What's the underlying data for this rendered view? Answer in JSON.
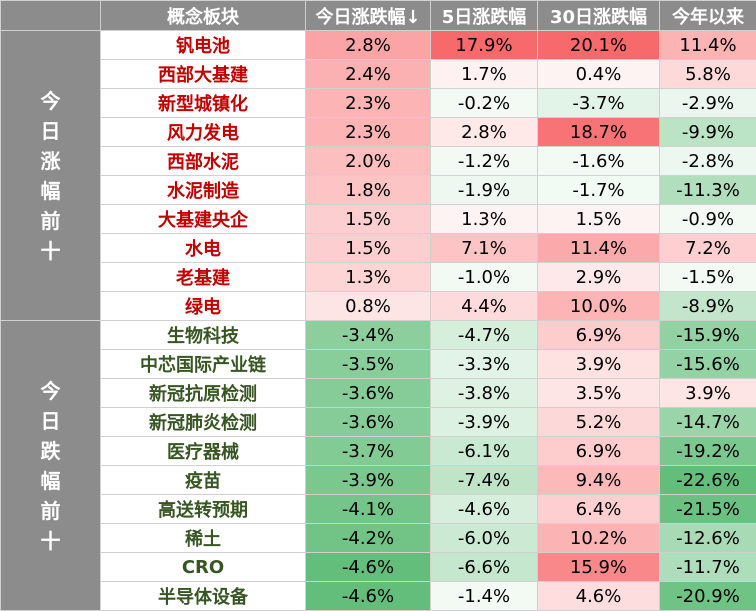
{
  "headers": [
    "",
    "概念板块",
    "今日涨跌幅↓",
    "5日涨跌幅",
    "30日涨跌幅",
    "今年以来"
  ],
  "groups": [
    {
      "label": "今日涨幅前十",
      "kind": "up"
    },
    {
      "label": "今日跌幅前十",
      "kind": "down"
    }
  ],
  "colors": {
    "header_bg": "#8c8c8c",
    "up_name": "#c00000",
    "down_name": "#375623",
    "max_positive": "#f8696b",
    "max_negative": "#63be7b"
  },
  "rows": [
    {
      "group": 0,
      "name": "钒电池",
      "values": [
        "2.8%",
        "17.9%",
        "20.1%",
        "11.4%"
      ],
      "nums": [
        2.8,
        17.9,
        20.1,
        11.4
      ]
    },
    {
      "group": 0,
      "name": "西部大基建",
      "values": [
        "2.4%",
        "1.7%",
        "0.4%",
        "5.8%"
      ],
      "nums": [
        2.4,
        1.7,
        0.4,
        5.8
      ]
    },
    {
      "group": 0,
      "name": "新型城镇化",
      "values": [
        "2.3%",
        "-0.2%",
        "-3.7%",
        "-2.9%"
      ],
      "nums": [
        2.3,
        -0.2,
        -3.7,
        -2.9
      ]
    },
    {
      "group": 0,
      "name": "风力发电",
      "values": [
        "2.3%",
        "2.8%",
        "18.7%",
        "-9.9%"
      ],
      "nums": [
        2.3,
        2.8,
        18.7,
        -9.9
      ]
    },
    {
      "group": 0,
      "name": "西部水泥",
      "values": [
        "2.0%",
        "-1.2%",
        "-1.6%",
        "-2.8%"
      ],
      "nums": [
        2.0,
        -1.2,
        -1.6,
        -2.8
      ]
    },
    {
      "group": 0,
      "name": "水泥制造",
      "values": [
        "1.8%",
        "-1.9%",
        "-1.7%",
        "-11.3%"
      ],
      "nums": [
        1.8,
        -1.9,
        -1.7,
        -11.3
      ]
    },
    {
      "group": 0,
      "name": "大基建央企",
      "values": [
        "1.5%",
        "1.3%",
        "1.5%",
        "-0.9%"
      ],
      "nums": [
        1.5,
        1.3,
        1.5,
        -0.9
      ]
    },
    {
      "group": 0,
      "name": "水电",
      "values": [
        "1.5%",
        "7.1%",
        "11.4%",
        "7.2%"
      ],
      "nums": [
        1.5,
        7.1,
        11.4,
        7.2
      ]
    },
    {
      "group": 0,
      "name": "老基建",
      "values": [
        "1.3%",
        "-1.0%",
        "2.9%",
        "-1.5%"
      ],
      "nums": [
        1.3,
        -1.0,
        2.9,
        -1.5
      ]
    },
    {
      "group": 0,
      "name": "绿电",
      "values": [
        "0.8%",
        "4.4%",
        "10.0%",
        "-8.9%"
      ],
      "nums": [
        0.8,
        4.4,
        10.0,
        -8.9
      ]
    },
    {
      "group": 1,
      "name": "生物科技",
      "values": [
        "-3.4%",
        "-4.7%",
        "6.9%",
        "-15.9%"
      ],
      "nums": [
        -3.4,
        -4.7,
        6.9,
        -15.9
      ]
    },
    {
      "group": 1,
      "name": "中芯国际产业链",
      "values": [
        "-3.5%",
        "-3.3%",
        "3.9%",
        "-15.6%"
      ],
      "nums": [
        -3.5,
        -3.3,
        3.9,
        -15.6
      ]
    },
    {
      "group": 1,
      "name": "新冠抗原检测",
      "values": [
        "-3.6%",
        "-3.8%",
        "3.5%",
        "3.9%"
      ],
      "nums": [
        -3.6,
        -3.8,
        3.5,
        3.9
      ]
    },
    {
      "group": 1,
      "name": "新冠肺炎检测",
      "values": [
        "-3.6%",
        "-3.9%",
        "5.2%",
        "-14.7%"
      ],
      "nums": [
        -3.6,
        -3.9,
        5.2,
        -14.7
      ]
    },
    {
      "group": 1,
      "name": "医疗器械",
      "values": [
        "-3.7%",
        "-6.1%",
        "6.9%",
        "-19.2%"
      ],
      "nums": [
        -3.7,
        -6.1,
        6.9,
        -19.2
      ]
    },
    {
      "group": 1,
      "name": "疫苗",
      "values": [
        "-3.9%",
        "-7.4%",
        "9.4%",
        "-22.6%"
      ],
      "nums": [
        -3.9,
        -7.4,
        9.4,
        -22.6
      ]
    },
    {
      "group": 1,
      "name": "高送转预期",
      "values": [
        "-4.1%",
        "-4.6%",
        "6.4%",
        "-21.5%"
      ],
      "nums": [
        -4.1,
        -4.6,
        6.4,
        -21.5
      ]
    },
    {
      "group": 1,
      "name": "稀土",
      "values": [
        "-4.2%",
        "-6.0%",
        "10.2%",
        "-12.6%"
      ],
      "nums": [
        -4.2,
        -6.0,
        10.2,
        -12.6
      ]
    },
    {
      "group": 1,
      "name": "CRO",
      "values": [
        "-4.6%",
        "-6.6%",
        "15.9%",
        "-11.7%"
      ],
      "nums": [
        -4.6,
        -6.6,
        15.9,
        -11.7
      ]
    },
    {
      "group": 1,
      "name": "半导体设备",
      "values": [
        "-4.6%",
        "-1.4%",
        "4.6%",
        "-20.9%"
      ],
      "nums": [
        -4.6,
        -1.4,
        4.6,
        -20.9
      ]
    }
  ]
}
